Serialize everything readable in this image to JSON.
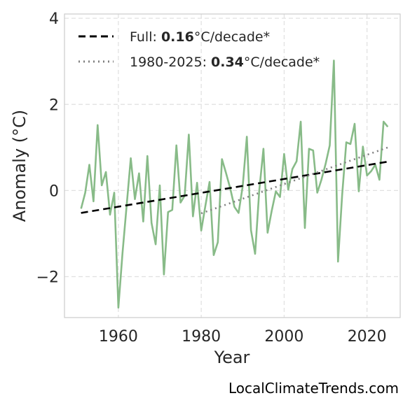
{
  "chart_data": {
    "type": "line",
    "title": "",
    "xlabel": "Year",
    "ylabel": "Anomaly (°C)",
    "xlim": [
      1947,
      2028
    ],
    "ylim": [
      -2.95,
      4.1
    ],
    "xticks": [
      1960,
      1980,
      2000,
      2020
    ],
    "yticks": [
      -2,
      0,
      2,
      4
    ],
    "ytick_labels": [
      "−2",
      "0",
      "2",
      "4"
    ],
    "grid": true,
    "legend_position": "top-left",
    "colors": {
      "anomaly": "#88bb88",
      "full_trend": "#000000",
      "recent_trend": "#808080"
    },
    "x": [
      1951,
      1952,
      1953,
      1954,
      1955,
      1956,
      1957,
      1958,
      1959,
      1960,
      1961,
      1962,
      1963,
      1964,
      1965,
      1966,
      1967,
      1968,
      1969,
      1970,
      1971,
      1972,
      1973,
      1974,
      1975,
      1976,
      1977,
      1978,
      1979,
      1980,
      1981,
      1982,
      1983,
      1984,
      1985,
      1986,
      1987,
      1988,
      1989,
      1990,
      1991,
      1992,
      1993,
      1994,
      1995,
      1996,
      1997,
      1998,
      1999,
      2000,
      2001,
      2002,
      2003,
      2004,
      2005,
      2006,
      2007,
      2008,
      2009,
      2010,
      2011,
      2012,
      2013,
      2014,
      2015,
      2016,
      2017,
      2018,
      2019,
      2020,
      2021,
      2022,
      2023,
      2024,
      2025
    ],
    "series": [
      {
        "values": [
          -0.42,
          -0.05,
          0.6,
          -0.25,
          1.52,
          0.12,
          0.43,
          -0.56,
          -0.05,
          -2.72,
          -1.45,
          -0.35,
          0.75,
          -0.2,
          0.4,
          -0.72,
          0.8,
          -0.75,
          -1.25,
          0.12,
          -1.95,
          -0.5,
          -0.45,
          1.05,
          -0.28,
          -0.12,
          1.3,
          -0.6,
          0.18,
          -0.93,
          -0.35,
          0.2,
          -1.5,
          -1.2,
          0.73,
          0.4,
          0.05,
          -0.38,
          -0.52,
          0.1,
          1.25,
          -0.92,
          -1.47,
          0.0,
          0.97,
          -0.98,
          -0.47,
          -0.02,
          -0.15,
          0.85,
          0.02,
          0.5,
          0.68,
          1.6,
          -0.87,
          0.97,
          0.93,
          -0.05,
          0.25,
          0.62,
          1.05,
          3.02,
          -1.65,
          -0.1,
          1.12,
          1.08,
          1.55,
          -0.02,
          1.02,
          0.35,
          0.45,
          0.6,
          0.25,
          1.6,
          1.48
        ]
      }
    ],
    "trends": [
      {
        "label_prefix": "Full: ",
        "rate": "0.16",
        "label_suffix": "°C/decade*",
        "x": [
          1951,
          2025
        ],
        "y": [
          -0.52,
          0.67
        ],
        "style": "dashed"
      },
      {
        "label_prefix": "1980-2025: ",
        "rate": "0.34",
        "label_suffix": "°C/decade*",
        "x": [
          1980,
          2025
        ],
        "y": [
          -0.53,
          1.0
        ],
        "style": "dotted"
      }
    ]
  },
  "credit": "LocalClimateTrends.com"
}
